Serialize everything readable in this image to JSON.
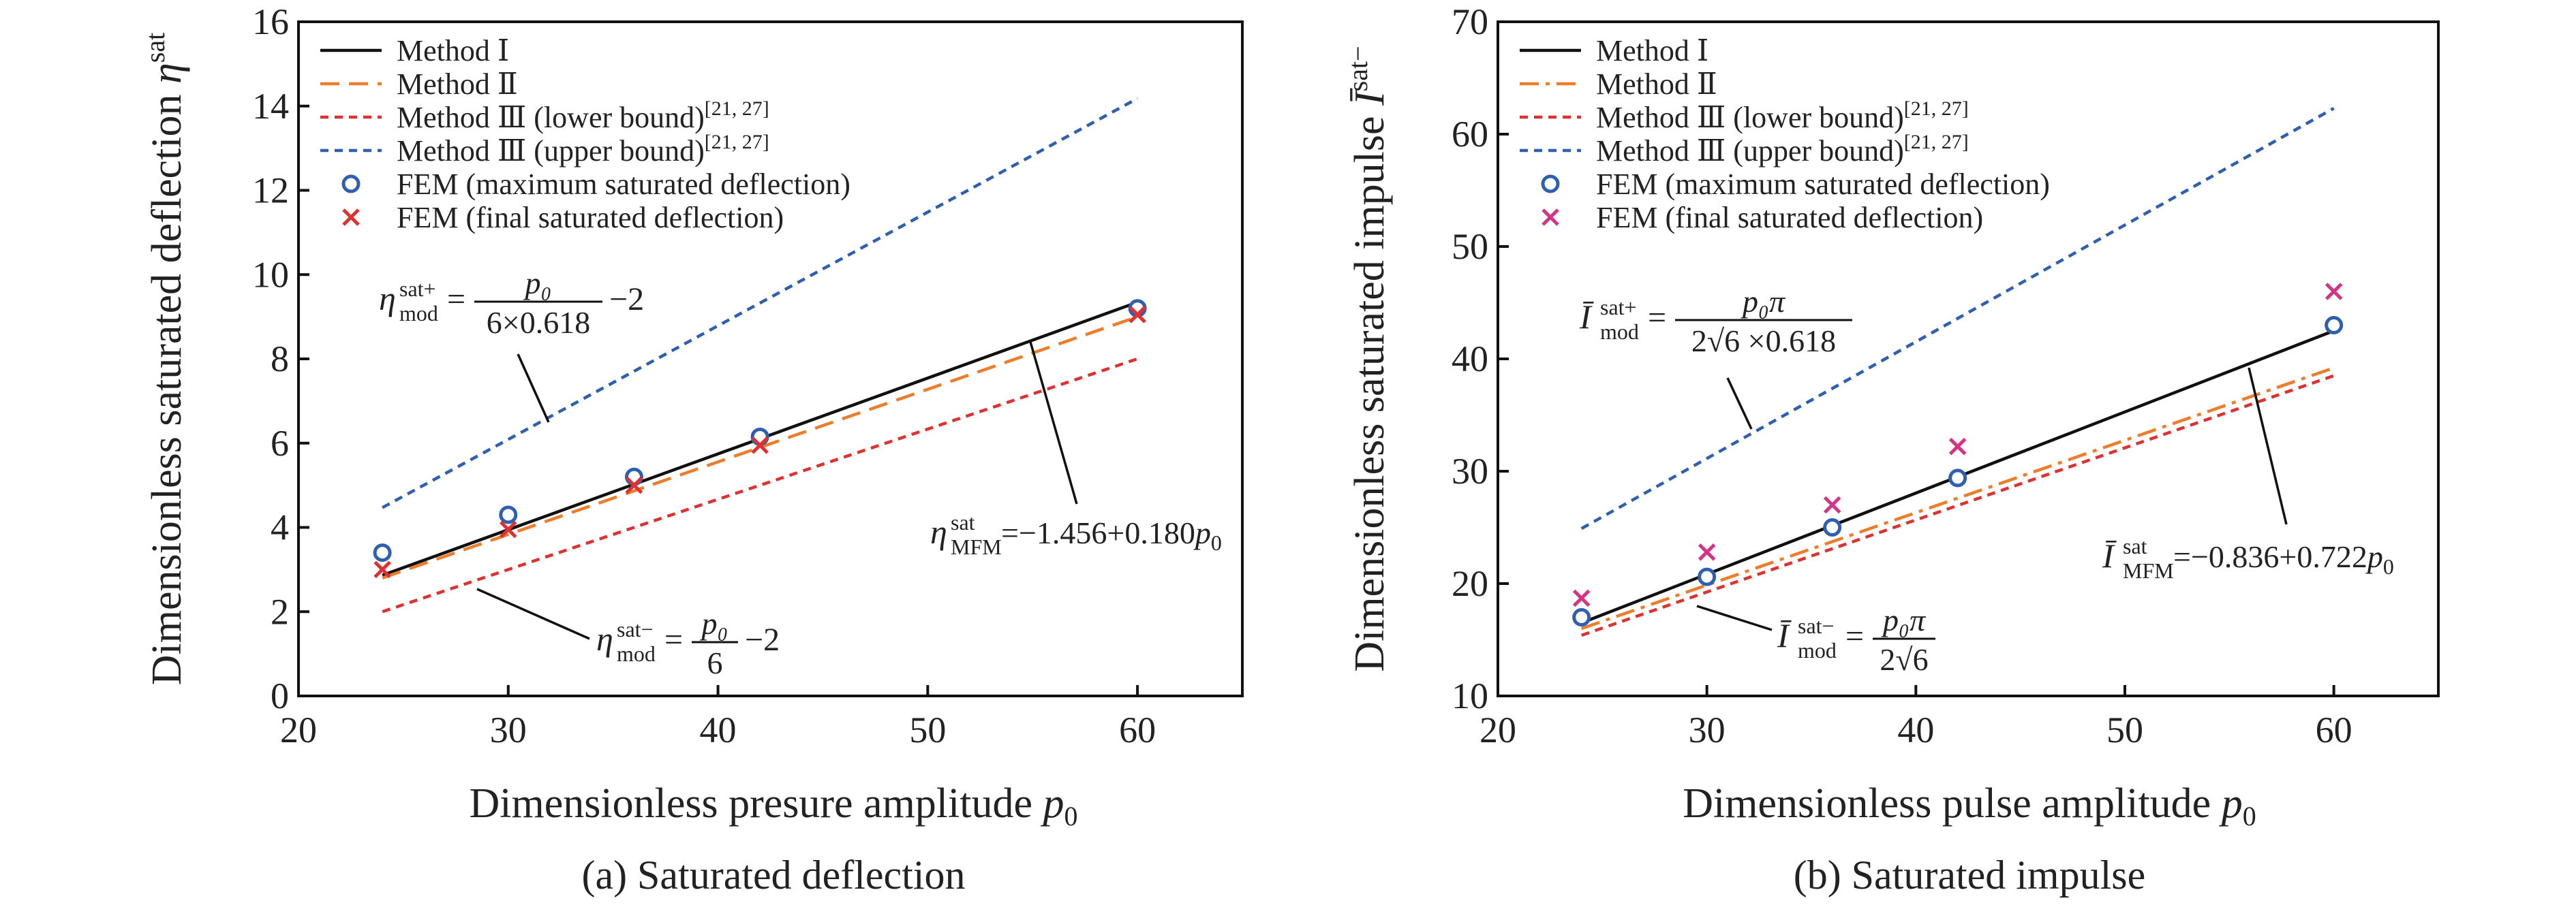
{
  "chart_data": [
    {
      "type": "line",
      "caption": "(a) Saturated deflection",
      "xlabel": "Dimensionless presure amplitude",
      "xlabel_sym": "p",
      "xlabel_sub": "0",
      "ylabel": "Dimensionless saturated deflection",
      "ylabel_sym": "η",
      "ylabel_sup": "sat",
      "xlim": [
        20,
        65
      ],
      "ylim": [
        0,
        16
      ],
      "xticks": [
        20,
        30,
        40,
        50,
        60
      ],
      "yticks": [
        0,
        2,
        4,
        6,
        8,
        10,
        12,
        14,
        16
      ],
      "grid": false,
      "legend_position": "top-left",
      "series": [
        {
          "name": "Method Ⅰ",
          "kind": "line",
          "color": "#111111",
          "dash": "",
          "x": [
            24,
            60
          ],
          "y": [
            2.865,
            9.344
          ]
        },
        {
          "name": "Method Ⅱ",
          "kind": "line",
          "color": "#ee7d2b",
          "dash": "28,14",
          "x": [
            24,
            60
          ],
          "y": [
            2.8,
            9.0
          ]
        },
        {
          "name": "Method Ⅲ (lower bound)",
          "legend_sup": "[21, 27]",
          "kind": "line",
          "color": "#e03131",
          "dash": "12,9",
          "x": [
            24,
            60
          ],
          "y": [
            2.0,
            8.0
          ]
        },
        {
          "name": "Method Ⅲ (upper bound)",
          "legend_sup": "[21, 27]",
          "kind": "line",
          "color": "#2f5fb0",
          "dash": "12,9",
          "x": [
            24,
            60
          ],
          "y": [
            4.47,
            14.18
          ]
        },
        {
          "name": "FEM (maximum saturated deflection)",
          "kind": "circle",
          "color": "#2f5fb0",
          "x": [
            24,
            30,
            36,
            42,
            60
          ],
          "y": [
            3.4,
            4.3,
            5.2,
            6.15,
            9.2
          ]
        },
        {
          "name": "FEM (final saturated deflection)",
          "kind": "cross",
          "color": "#e03131",
          "x": [
            24,
            30,
            36,
            42,
            60
          ],
          "y": [
            3.0,
            3.95,
            5.0,
            5.95,
            9.05
          ]
        }
      ],
      "annotations": [
        {
          "id": "upper",
          "lhs": "η",
          "sup": "sat+",
          "sub": "mod",
          "num": "p₀",
          "den": "6×0.618",
          "tail": "−2"
        },
        {
          "id": "lower",
          "lhs": "η",
          "sup": "sat−",
          "sub": "mod",
          "num": "p₀",
          "den": "6",
          "tail": "−2"
        },
        {
          "id": "mfm",
          "lhs": "η",
          "sup": "sat",
          "sub": "MFM",
          "text": "=−1.456+0.180",
          "tail_sym": "p",
          "tail_sub": "0"
        }
      ]
    },
    {
      "type": "line",
      "caption": "(b) Saturated impulse",
      "xlabel": "Dimensionless pulse amplitude",
      "xlabel_sym": "p",
      "xlabel_sub": "0",
      "ylabel": "Dimensionless saturated impulse",
      "ylabel_sym": "Ī",
      "ylabel_sup": "sat−",
      "xlim": [
        20,
        65
      ],
      "ylim": [
        10,
        70
      ],
      "xticks": [
        20,
        30,
        40,
        50,
        60
      ],
      "yticks": [
        10,
        20,
        30,
        40,
        50,
        60,
        70
      ],
      "grid": false,
      "legend_position": "top-left",
      "series": [
        {
          "name": "Method Ⅰ",
          "kind": "line",
          "color": "#111111",
          "dash": "",
          "x": [
            24,
            60
          ],
          "y": [
            16.5,
            42.5
          ]
        },
        {
          "name": "Method Ⅱ",
          "kind": "line",
          "color": "#ee7d2b",
          "dash": "28,10,6,10",
          "x": [
            24,
            60
          ],
          "y": [
            16.0,
            39.2
          ]
        },
        {
          "name": "Method Ⅲ (lower bound)",
          "legend_sup": "[21, 27]",
          "kind": "line",
          "color": "#e03131",
          "dash": "12,9",
          "x": [
            24,
            60
          ],
          "y": [
            15.4,
            38.5
          ]
        },
        {
          "name": "Method Ⅲ (upper bound)",
          "legend_sup": "[21, 27]",
          "kind": "line",
          "color": "#2f5fb0",
          "dash": "12,9",
          "x": [
            24,
            60
          ],
          "y": [
            24.9,
            62.3
          ]
        },
        {
          "name": "FEM (maximum saturated deflection)",
          "kind": "circle",
          "color": "#2f5fb0",
          "x": [
            24,
            30,
            36,
            42,
            60
          ],
          "y": [
            17.0,
            20.6,
            25.0,
            29.4,
            43.0
          ]
        },
        {
          "name": "FEM (final saturated deflection)",
          "kind": "cross",
          "color": "#d63384",
          "x": [
            24,
            30,
            36,
            42,
            60
          ],
          "y": [
            18.7,
            22.8,
            27.0,
            32.2,
            46.0
          ]
        }
      ],
      "annotations": [
        {
          "id": "upper",
          "lhs": "Ī",
          "sup": "sat+",
          "sub": "mod",
          "num": "p₀π",
          "den": "2√6 ×0.618",
          "tail": ""
        },
        {
          "id": "lower",
          "lhs": "Ī",
          "sup": "sat−",
          "sub": "mod",
          "num": "p₀π",
          "den": "2√6",
          "tail": ""
        },
        {
          "id": "mfm",
          "lhs": "Ī",
          "sup": "sat",
          "sub": "MFM",
          "text": "=−0.836+0.722",
          "tail_sym": "p",
          "tail_sub": "0"
        }
      ]
    }
  ]
}
